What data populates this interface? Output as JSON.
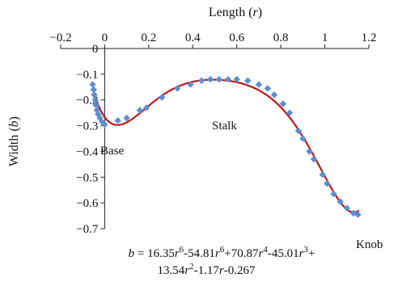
{
  "chart_data": {
    "type": "scatter",
    "title": "",
    "xlabel_text": "Length",
    "xlabel_var": "r",
    "ylabel_text": "Width",
    "ylabel_var": "b",
    "xlim": [
      -0.2,
      1.2
    ],
    "ylim": [
      -0.7,
      0
    ],
    "x_ticks": [
      -0.2,
      0,
      0.2,
      0.4,
      0.6,
      0.8,
      1,
      1.2
    ],
    "x_tick_labels": [
      "−0.2",
      "0",
      "0.2",
      "0.4",
      "0.6",
      "0.8",
      "1",
      "1.2"
    ],
    "y_ticks": [
      0,
      -0.1,
      -0.2,
      -0.3,
      -0.4,
      -0.5,
      -0.6,
      -0.7
    ],
    "y_tick_labels": [
      "0",
      "−0.1",
      "−0.2",
      "−0.3",
      "−0.4",
      "−0.5",
      "−0.6",
      "−0.7"
    ],
    "x_axis_position": "top",
    "grid": false,
    "series": [
      {
        "kind": "scatter",
        "marker": "diamond",
        "color": "#5b8fd1",
        "points": [
          [
            -0.055,
            -0.14
          ],
          [
            -0.05,
            -0.16
          ],
          [
            -0.047,
            -0.18
          ],
          [
            -0.043,
            -0.2
          ],
          [
            -0.04,
            -0.22
          ],
          [
            -0.035,
            -0.24
          ],
          [
            -0.03,
            -0.255
          ],
          [
            -0.022,
            -0.27
          ],
          [
            -0.012,
            -0.285
          ],
          [
            0.0,
            -0.295
          ],
          [
            0.06,
            -0.28
          ],
          [
            0.1,
            -0.27
          ],
          [
            0.16,
            -0.24
          ],
          [
            0.19,
            -0.23
          ],
          [
            0.26,
            -0.19
          ],
          [
            0.33,
            -0.155
          ],
          [
            0.39,
            -0.14
          ],
          [
            0.44,
            -0.125
          ],
          [
            0.48,
            -0.12
          ],
          [
            0.52,
            -0.12
          ],
          [
            0.56,
            -0.12
          ],
          [
            0.6,
            -0.12
          ],
          [
            0.65,
            -0.125
          ],
          [
            0.7,
            -0.14
          ],
          [
            0.74,
            -0.155
          ],
          [
            0.77,
            -0.18
          ],
          [
            0.81,
            -0.215
          ],
          [
            0.84,
            -0.25
          ],
          [
            0.88,
            -0.32
          ],
          [
            0.9,
            -0.35
          ],
          [
            0.93,
            -0.4
          ],
          [
            0.95,
            -0.43
          ],
          [
            0.99,
            -0.49
          ],
          [
            1.01,
            -0.525
          ],
          [
            1.04,
            -0.565
          ],
          [
            1.07,
            -0.595
          ],
          [
            1.1,
            -0.62
          ],
          [
            1.13,
            -0.64
          ],
          [
            1.15,
            -0.645
          ]
        ]
      },
      {
        "kind": "line",
        "name": "fit",
        "color": "#c0171b",
        "polynomial_coefficients_desc": [
          16.35,
          -54.81,
          70.87,
          -45.01,
          13.54,
          -1.17,
          -0.267
        ],
        "x_range": [
          -0.05,
          1.155
        ]
      }
    ],
    "annotations": {
      "base": "Base",
      "stalk": "Stalk",
      "knob": "Knob"
    },
    "equation": {
      "b": "b",
      "eq": " = 16.35",
      "r": "r",
      "e6": "6",
      "m1": "-54.81",
      "m2": "+70.87",
      "e4": "4",
      "m3": "-45.01",
      "e3": "3",
      "plus": "+",
      "l2a": "13.54",
      "e2": "2",
      "l2b": "-1.17",
      "l2c": "-0.267"
    }
  }
}
